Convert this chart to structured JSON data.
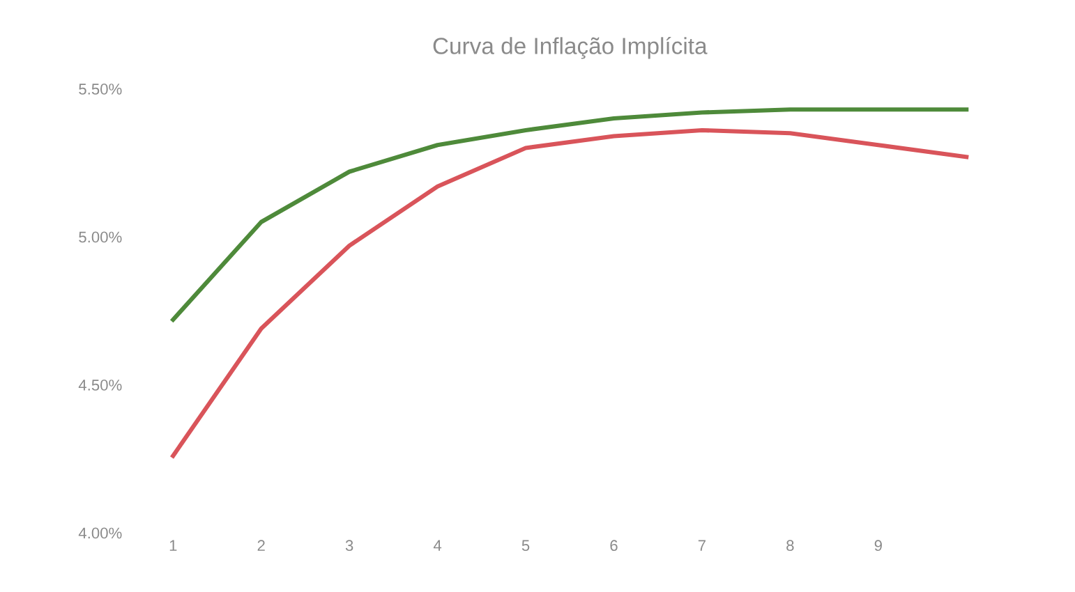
{
  "chart_data": {
    "type": "line",
    "title": "Curva de Inflação Implícita",
    "categories": [
      "1",
      "2",
      "3",
      "4",
      "5",
      "6",
      "7",
      "8",
      "9",
      null
    ],
    "series": [
      {
        "color": "#4e8a3a",
        "values": [
          4.72,
          5.05,
          5.22,
          5.31,
          5.36,
          5.4,
          5.42,
          5.43,
          5.43,
          5.43
        ]
      },
      {
        "color": "#d9545a",
        "values": [
          4.26,
          4.69,
          4.97,
          5.17,
          5.3,
          5.34,
          5.36,
          5.35,
          5.31,
          5.27
        ]
      }
    ],
    "ylim": [
      4.0,
      5.5
    ],
    "yticks": [
      {
        "value": 4.0,
        "label": "4.00%"
      },
      {
        "value": 4.5,
        "label": "4.50%"
      },
      {
        "value": 5.0,
        "label": "5.00%"
      },
      {
        "value": 5.5,
        "label": "5.50%"
      }
    ],
    "grid": false,
    "marker": "none",
    "line_style": "solid"
  }
}
